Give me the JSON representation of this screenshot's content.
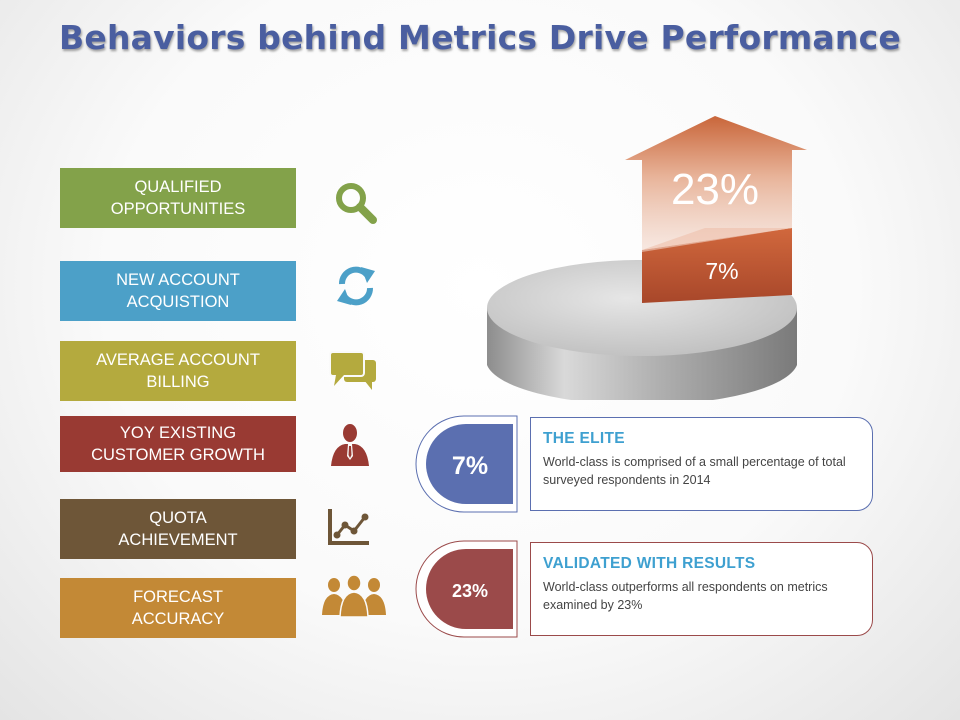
{
  "title": "Behaviors behind Metrics Drive Performance",
  "metrics": [
    {
      "label": "QUALIFIED\nOPPORTUNITIES",
      "color": "#83a24a",
      "icon": "search-icon"
    },
    {
      "label": "NEW ACCOUNT\nACQUISTION",
      "color": "#4ca0c8",
      "icon": "refresh-icon"
    },
    {
      "label": "AVERAGE ACCOUNT\nBILLING",
      "color": "#b4aa3e",
      "icon": "chat-bubbles-icon"
    },
    {
      "label": "YOY EXISTING\nCUSTOMER GROWTH",
      "color": "#993a33",
      "icon": "businessman-icon"
    },
    {
      "label": "QUOTA\nACHIEVEMENT",
      "color": "#6e5638",
      "icon": "line-chart-icon"
    },
    {
      "label": "FORECAST\nACCURACY",
      "color": "#c38936",
      "icon": "team-icon"
    }
  ],
  "chart_data": {
    "type": "pie",
    "slices": [
      {
        "label": "7%",
        "value": 7
      },
      {
        "label": "23%",
        "value": 23
      }
    ]
  },
  "cards": [
    {
      "badge": "7%",
      "heading": "THE ELITE",
      "body": "World-class is comprised of a small percentage of total surveyed respondents in 2014",
      "accent": "#5b6fb0",
      "heading_color": "#3ea0d0"
    },
    {
      "badge": "23%",
      "heading": "VALIDATED WITH RESULTS",
      "body": "World-class outperforms all respondents on metrics examined by 23%",
      "accent": "#9b4a4a",
      "heading_color": "#3ea0d0"
    }
  ]
}
